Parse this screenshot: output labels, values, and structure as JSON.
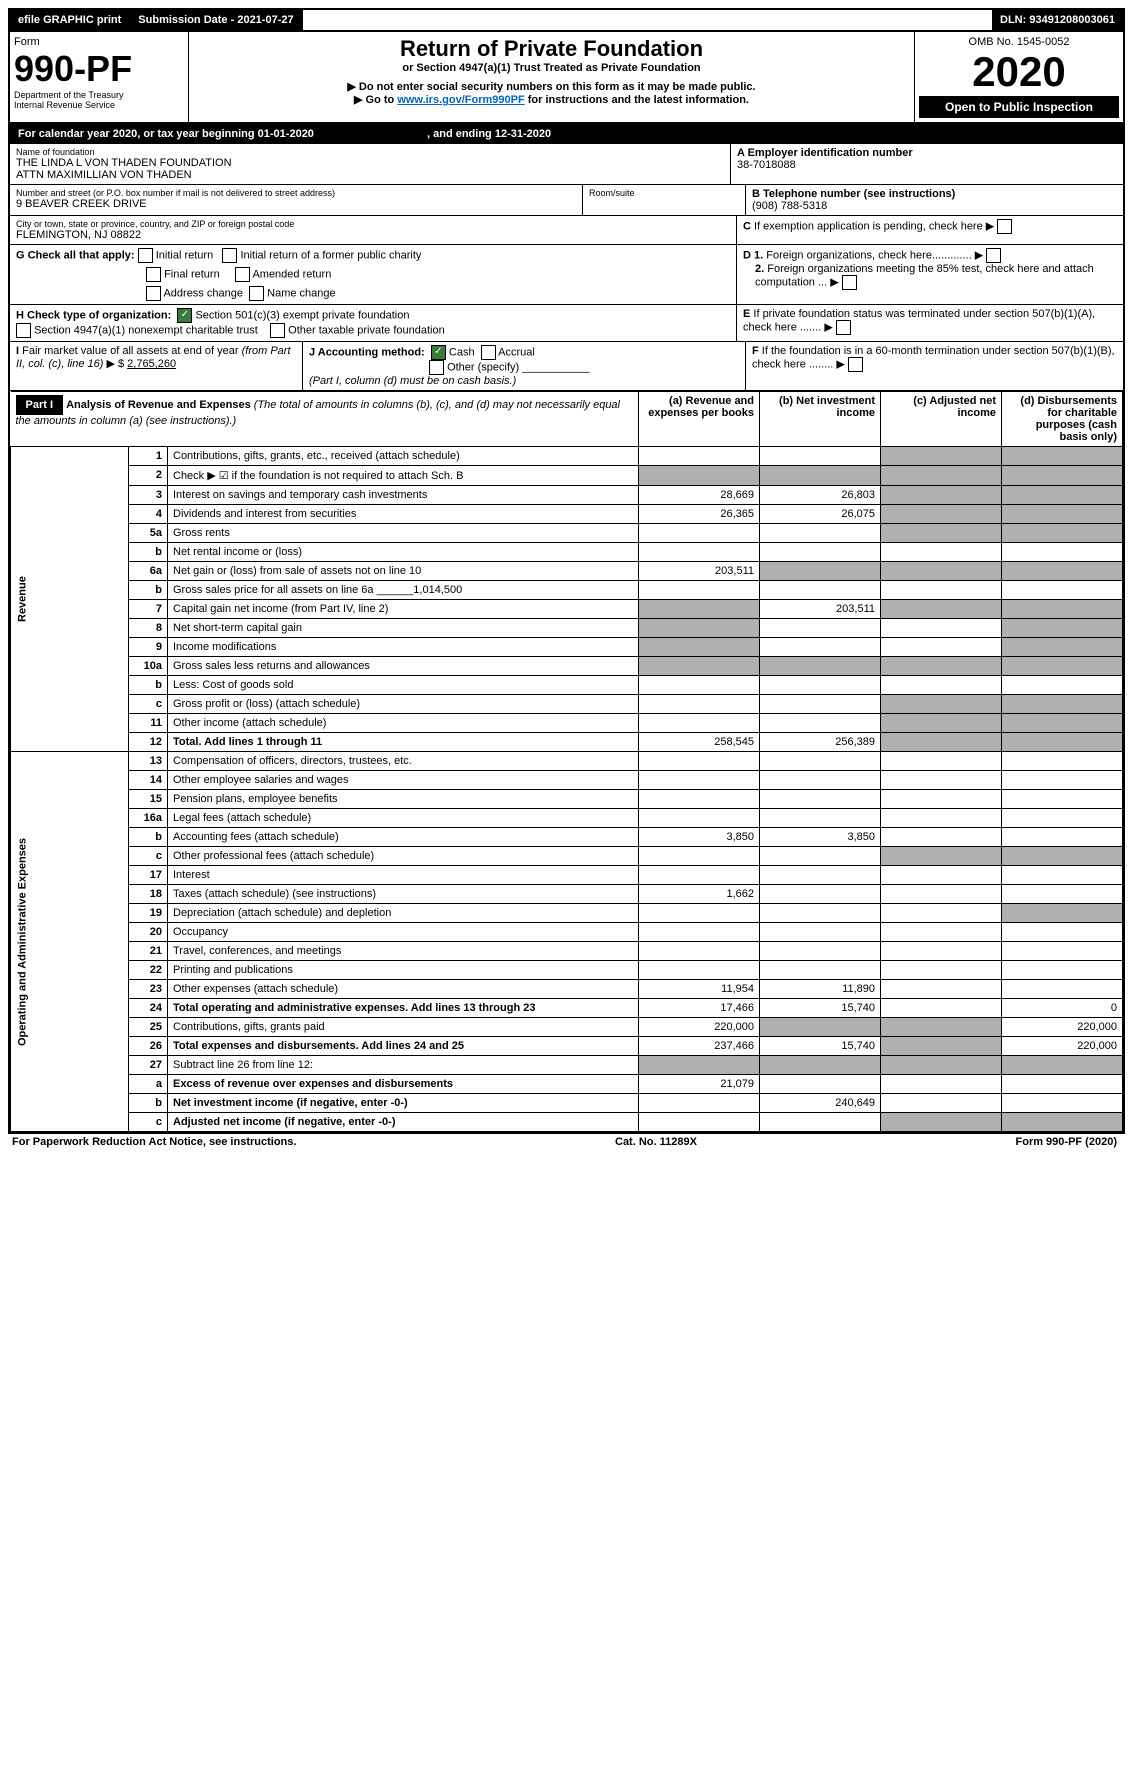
{
  "topbar": {
    "efile": "efile GRAPHIC print",
    "submission_label": "Submission Date - ",
    "submission_date": "2021-07-27",
    "dln_label": "DLN: ",
    "dln": "93491208003061"
  },
  "header": {
    "form_label": "Form",
    "form_number": "990-PF",
    "dept1": "Department of the Treasury",
    "dept2": "Internal Revenue Service",
    "title": "Return of Private Foundation",
    "subtitle": "or Section 4947(a)(1) Trust Treated as Private Foundation",
    "note1": "▶ Do not enter social security numbers on this form as it may be made public.",
    "note2_prefix": "▶ Go to ",
    "note2_link": "www.irs.gov/Form990PF",
    "note2_suffix": " for instructions and the latest information.",
    "omb": "OMB No. 1545-0052",
    "year": "2020",
    "open_public": "Open to Public Inspection"
  },
  "calyear": {
    "text_prefix": "For calendar year 2020, or tax year beginning ",
    "begin": "01-01-2020",
    "text_mid": " , and ending ",
    "end": "12-31-2020"
  },
  "foundation": {
    "name_label": "Name of foundation",
    "name1": "THE LINDA L VON THADEN FOUNDATION",
    "name2": "ATTN MAXIMILLIAN VON THADEN",
    "addr_label": "Number and street (or P.O. box number if mail is not delivered to street address)",
    "addr": "9 BEAVER CREEK DRIVE",
    "room_label": "Room/suite",
    "city_label": "City or town, state or province, country, and ZIP or foreign postal code",
    "city": "FLEMINGTON, NJ  08822",
    "ein_label": "A Employer identification number",
    "ein": "38-7018088",
    "phone_label": "B Telephone number (see instructions)",
    "phone": "(908) 788-5318",
    "c_label": "C If exemption application is pending, check here",
    "d1_label": "D 1. Foreign organizations, check here.............",
    "d2_label": "2. Foreign organizations meeting the 85% test, check here and attach computation ...",
    "e_label": "E  If private foundation status was terminated under section 507(b)(1)(A), check here .......",
    "f_label": "F  If the foundation is in a 60-month termination under section 507(b)(1)(B), check here ........"
  },
  "checks": {
    "g_label": "G Check all that apply:",
    "initial_return": "Initial return",
    "initial_former": "Initial return of a former public charity",
    "final_return": "Final return",
    "amended_return": "Amended return",
    "address_change": "Address change",
    "name_change": "Name change",
    "h_label": "H Check type of organization:",
    "h_501c3": "Section 501(c)(3) exempt private foundation",
    "h_4947": "Section 4947(a)(1) nonexempt charitable trust",
    "h_other": "Other taxable private foundation",
    "i_label": "I Fair market value of all assets at end of year (from Part II, col. (c), line 16) ▶ $",
    "i_value": "2,765,260",
    "j_label": "J Accounting method:",
    "j_cash": "Cash",
    "j_accrual": "Accrual",
    "j_other": "Other (specify)",
    "j_note": "(Part I, column (d) must be on cash basis.)"
  },
  "part1": {
    "label": "Part I",
    "title": "Analysis of Revenue and Expenses",
    "subtitle": "(The total of amounts in columns (b), (c), and (d) may not necessarily equal the amounts in column (a) (see instructions).)",
    "col_a": "(a)    Revenue and expenses per books",
    "col_b": "(b)   Net investment income",
    "col_c": "(c)   Adjusted net income",
    "col_d": "(d)   Disbursements for charitable purposes (cash basis only)",
    "revenue_label": "Revenue",
    "expenses_label": "Operating and Administrative Expenses"
  },
  "rows": [
    {
      "num": "1",
      "desc": "Contributions, gifts, grants, etc., received (attach schedule)"
    },
    {
      "num": "2",
      "desc": "Check ▶ ☑ if the foundation is not required to attach Sch. B"
    },
    {
      "num": "3",
      "desc": "Interest on savings and temporary cash investments",
      "a": "28,669",
      "b": "26,803"
    },
    {
      "num": "4",
      "desc": "Dividends and interest from securities",
      "a": "26,365",
      "b": "26,075"
    },
    {
      "num": "5a",
      "desc": "Gross rents"
    },
    {
      "num": "b",
      "desc": "Net rental income or (loss)"
    },
    {
      "num": "6a",
      "desc": "Net gain or (loss) from sale of assets not on line 10",
      "a": "203,511"
    },
    {
      "num": "b",
      "desc": "Gross sales price for all assets on line 6a ______1,014,500"
    },
    {
      "num": "7",
      "desc": "Capital gain net income (from Part IV, line 2)",
      "b": "203,511"
    },
    {
      "num": "8",
      "desc": "Net short-term capital gain"
    },
    {
      "num": "9",
      "desc": "Income modifications"
    },
    {
      "num": "10a",
      "desc": "Gross sales less returns and allowances"
    },
    {
      "num": "b",
      "desc": "Less: Cost of goods sold"
    },
    {
      "num": "c",
      "desc": "Gross profit or (loss) (attach schedule)"
    },
    {
      "num": "11",
      "desc": "Other income (attach schedule)"
    },
    {
      "num": "12",
      "desc": "Total. Add lines 1 through 11",
      "a": "258,545",
      "b": "256,389",
      "bold": true
    },
    {
      "num": "13",
      "desc": "Compensation of officers, directors, trustees, etc."
    },
    {
      "num": "14",
      "desc": "Other employee salaries and wages"
    },
    {
      "num": "15",
      "desc": "Pension plans, employee benefits"
    },
    {
      "num": "16a",
      "desc": "Legal fees (attach schedule)"
    },
    {
      "num": "b",
      "desc": "Accounting fees (attach schedule)",
      "a": "3,850",
      "b": "3,850"
    },
    {
      "num": "c",
      "desc": "Other professional fees (attach schedule)"
    },
    {
      "num": "17",
      "desc": "Interest"
    },
    {
      "num": "18",
      "desc": "Taxes (attach schedule) (see instructions)",
      "a": "1,662"
    },
    {
      "num": "19",
      "desc": "Depreciation (attach schedule) and depletion"
    },
    {
      "num": "20",
      "desc": "Occupancy"
    },
    {
      "num": "21",
      "desc": "Travel, conferences, and meetings"
    },
    {
      "num": "22",
      "desc": "Printing and publications"
    },
    {
      "num": "23",
      "desc": "Other expenses (attach schedule)",
      "a": "11,954",
      "b": "11,890"
    },
    {
      "num": "24",
      "desc": "Total operating and administrative expenses. Add lines 13 through 23",
      "a": "17,466",
      "b": "15,740",
      "d": "0",
      "bold": true
    },
    {
      "num": "25",
      "desc": "Contributions, gifts, grants paid",
      "a": "220,000",
      "d": "220,000"
    },
    {
      "num": "26",
      "desc": "Total expenses and disbursements. Add lines 24 and 25",
      "a": "237,466",
      "b": "15,740",
      "d": "220,000",
      "bold": true
    },
    {
      "num": "27",
      "desc": "Subtract line 26 from line 12:"
    },
    {
      "num": "a",
      "desc": "Excess of revenue over expenses and disbursements",
      "a": "21,079",
      "bold": true
    },
    {
      "num": "b",
      "desc": "Net investment income (if negative, enter -0-)",
      "b": "240,649",
      "bold": true
    },
    {
      "num": "c",
      "desc": "Adjusted net income (if negative, enter -0-)",
      "bold": true
    }
  ],
  "footer": {
    "left": "For Paperwork Reduction Act Notice, see instructions.",
    "mid": "Cat. No. 11289X",
    "right": "Form 990-PF (2020)"
  }
}
